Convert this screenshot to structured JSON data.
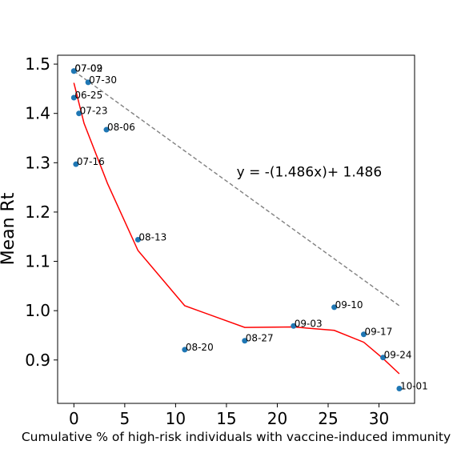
{
  "chart_data": {
    "type": "scatter",
    "xlabel": "Cumulative % of high-risk individuals with vaccine-induced immunity",
    "ylabel": "Mean Rt",
    "xlim": [
      -1.6,
      33.5
    ],
    "ylim": [
      0.812,
      1.518
    ],
    "xticks": [
      0,
      5,
      10,
      15,
      20,
      25,
      30
    ],
    "yticks": [
      0.9,
      1.0,
      1.1,
      1.2,
      1.3,
      1.4,
      1.5
    ],
    "grid": false,
    "points": [
      {
        "label": "07-02",
        "x": 0.0,
        "y": 1.486
      },
      {
        "label": "07-09",
        "x": 0.0,
        "y": 1.486
      },
      {
        "label": "06-25",
        "x": 0.0,
        "y": 1.432
      },
      {
        "label": "07-16",
        "x": 0.2,
        "y": 1.297
      },
      {
        "label": "07-23",
        "x": 0.5,
        "y": 1.4
      },
      {
        "label": "07-30",
        "x": 1.4,
        "y": 1.463
      },
      {
        "label": "08-06",
        "x": 3.2,
        "y": 1.367
      },
      {
        "label": "08-13",
        "x": 6.3,
        "y": 1.144
      },
      {
        "label": "08-20",
        "x": 10.9,
        "y": 0.921
      },
      {
        "label": "08-27",
        "x": 16.8,
        "y": 0.939
      },
      {
        "label": "09-03",
        "x": 21.6,
        "y": 0.969
      },
      {
        "label": "09-10",
        "x": 25.6,
        "y": 1.007
      },
      {
        "label": "09-17",
        "x": 28.5,
        "y": 0.952
      },
      {
        "label": "09-24",
        "x": 30.4,
        "y": 0.905
      },
      {
        "label": "10-01",
        "x": 32.0,
        "y": 0.842
      }
    ],
    "fit_curve": {
      "color": "#ff0000",
      "x": [
        0,
        1,
        3.3,
        6.3,
        10.9,
        16.8,
        21.6,
        25.6,
        28.5,
        30.4,
        32.0
      ],
      "y": [
        1.462,
        1.38,
        1.258,
        1.122,
        1.01,
        0.966,
        0.967,
        0.96,
        0.936,
        0.903,
        0.872
      ]
    },
    "reference_line": {
      "color": "#808080",
      "style": "dashed",
      "x": [
        0,
        32.0
      ],
      "y": [
        1.486,
        1.01
      ]
    },
    "annotation": "y = -(1.486x)+ 1.486",
    "marker_color": "#1f77b4"
  }
}
